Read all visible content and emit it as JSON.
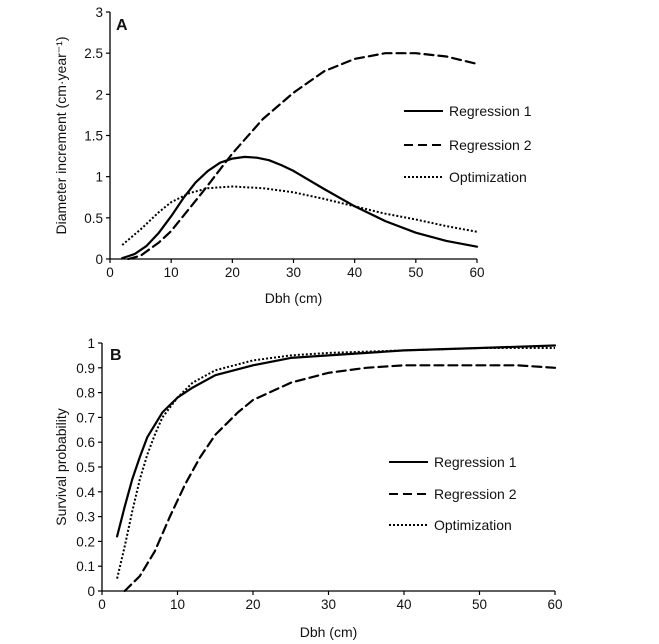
{
  "chart_data": [
    {
      "type": "line",
      "panel_label": "A",
      "xlabel": "Dbh (cm)",
      "ylabel": "Diameter increment (cm·year⁻¹)",
      "xlim": [
        0,
        60
      ],
      "ylim": [
        0,
        3
      ],
      "xticks": [
        "0",
        "10",
        "20",
        "30",
        "40",
        "50",
        "60"
      ],
      "yticks": [
        "0",
        "0.5",
        "1",
        "1.5",
        "2",
        "2.5",
        "3"
      ],
      "grid": false,
      "legend_position": "right",
      "series": [
        {
          "name": "Regression 1",
          "style": "solid",
          "x": [
            2,
            4,
            6,
            8,
            10,
            12,
            14,
            16,
            18,
            20,
            22,
            24,
            26,
            28,
            30,
            35,
            40,
            45,
            50,
            55,
            60
          ],
          "values": [
            0.01,
            0.06,
            0.16,
            0.32,
            0.52,
            0.74,
            0.93,
            1.07,
            1.17,
            1.22,
            1.24,
            1.23,
            1.2,
            1.14,
            1.07,
            0.85,
            0.64,
            0.46,
            0.32,
            0.22,
            0.15
          ]
        },
        {
          "name": "Regression 2",
          "style": "dashed",
          "x": [
            3,
            5,
            8,
            10,
            15,
            20,
            25,
            30,
            35,
            40,
            45,
            50,
            55,
            60
          ],
          "values": [
            0.0,
            0.04,
            0.2,
            0.34,
            0.8,
            1.28,
            1.7,
            2.02,
            2.28,
            2.43,
            2.5,
            2.5,
            2.46,
            2.37
          ]
        },
        {
          "name": "Optimization",
          "style": "dotted",
          "x": [
            2,
            5,
            8,
            10,
            13,
            16,
            20,
            25,
            30,
            35,
            40,
            45,
            50,
            55,
            60
          ],
          "values": [
            0.17,
            0.36,
            0.57,
            0.69,
            0.8,
            0.86,
            0.88,
            0.86,
            0.81,
            0.73,
            0.64,
            0.55,
            0.48,
            0.4,
            0.33
          ]
        }
      ]
    },
    {
      "type": "line",
      "panel_label": "B",
      "xlabel": "Dbh (cm)",
      "ylabel": "Survival probability",
      "xlim": [
        0,
        60
      ],
      "ylim": [
        0,
        1
      ],
      "xticks": [
        "0",
        "10",
        "20",
        "30",
        "40",
        "50",
        "60"
      ],
      "yticks": [
        "0",
        "0.1",
        "0.2",
        "0.3",
        "0.4",
        "0.5",
        "0.6",
        "0.7",
        "0.8",
        "0.9",
        "1"
      ],
      "grid": false,
      "legend_position": "right",
      "series": [
        {
          "name": "Regression 1",
          "style": "solid",
          "x": [
            2,
            3,
            4,
            5,
            6,
            8,
            10,
            12,
            15,
            20,
            25,
            30,
            40,
            50,
            60
          ],
          "values": [
            0.22,
            0.34,
            0.45,
            0.54,
            0.62,
            0.72,
            0.78,
            0.82,
            0.87,
            0.91,
            0.94,
            0.95,
            0.97,
            0.98,
            0.99
          ]
        },
        {
          "name": "Regression 2",
          "style": "dashed",
          "x": [
            3,
            5,
            7,
            9,
            11,
            13,
            15,
            18,
            20,
            25,
            30,
            35,
            40,
            45,
            50,
            55,
            60
          ],
          "values": [
            0.0,
            0.06,
            0.16,
            0.3,
            0.43,
            0.54,
            0.63,
            0.72,
            0.77,
            0.84,
            0.88,
            0.9,
            0.91,
            0.91,
            0.91,
            0.91,
            0.9
          ]
        },
        {
          "name": "Optimization",
          "style": "dotted",
          "x": [
            2,
            3,
            4,
            5,
            6,
            7,
            8,
            10,
            12,
            15,
            20,
            25,
            30,
            40,
            50,
            60
          ],
          "values": [
            0.05,
            0.18,
            0.32,
            0.45,
            0.55,
            0.63,
            0.7,
            0.78,
            0.84,
            0.89,
            0.93,
            0.95,
            0.96,
            0.97,
            0.98,
            0.98
          ]
        }
      ]
    }
  ]
}
